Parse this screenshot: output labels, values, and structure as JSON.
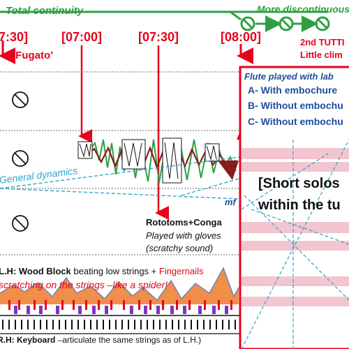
{
  "top": {
    "left_label": "Total continuity",
    "right_label": "More discontinuous"
  },
  "times": [
    "7:30]",
    "[07:00]",
    "[07:30]",
    "[08:00]"
  ],
  "fugato": "‘Fugato’",
  "tutti": {
    "line1": "2nd TUTTI",
    "line2": "Little clim"
  },
  "flute": {
    "heading": "Flute played with lab",
    "items": [
      "A- With embochure",
      "B- Without embochu",
      "C- Without embochu"
    ]
  },
  "solos": {
    "line1": "[Short solos",
    "line2": "within the tu"
  },
  "dynamics": {
    "general": "General dynamics",
    "mf": "mf"
  },
  "rototoms": {
    "title": "Rototoms+Conga",
    "line1": "Played with gloves",
    "line2": "(scratchy sound)"
  },
  "lh": {
    "prefix": "L.H: Wood Block",
    "mid": " beating low strings + ",
    "fingernails": "Fingernails",
    "line2": "scratching on the strings –like a spider!"
  },
  "rh": {
    "prefix": "R.H: Keyboard",
    "rest": " –articulate the same strings as of L.H.)"
  },
  "colors": {
    "green": "#2ea043",
    "red": "#e8001c",
    "blue": "#1f4e9c",
    "cyan": "#2aa7c9",
    "pink": "#f2c5cf",
    "purple": "#7b35c2",
    "orange": "#ef7a2a"
  },
  "icons": [
    "no-entry-icon",
    "arrow-down-icon"
  ]
}
